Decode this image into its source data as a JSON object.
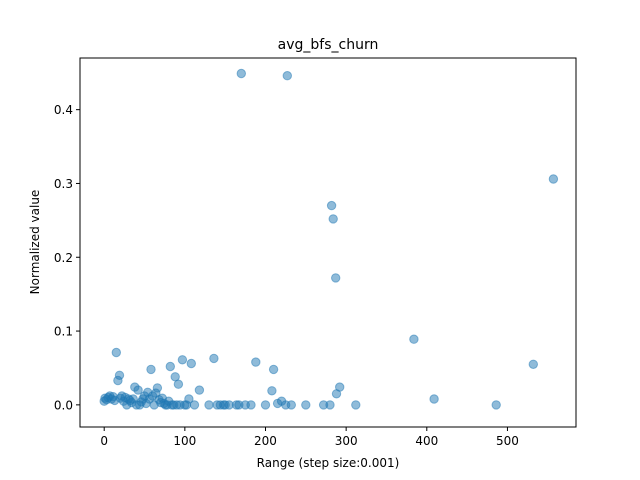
{
  "chart_data": {
    "type": "scatter",
    "title": "avg_bfs_churn",
    "xlabel": "Range (step size:0.001)",
    "ylabel": "Normalized value",
    "xlim": [
      -30,
      585
    ],
    "ylim": [
      -0.03,
      0.47
    ],
    "xticks": [
      0,
      100,
      200,
      300,
      400,
      500
    ],
    "yticks": [
      0.0,
      0.1,
      0.2,
      0.3,
      0.4
    ],
    "ytick_labels": [
      "0.0",
      "0.1",
      "0.2",
      "0.3",
      "0.4"
    ],
    "grid": false,
    "marker_color": "#1f77b4",
    "marker_alpha": 0.5,
    "points": [
      [
        0,
        0.005
      ],
      [
        1,
        0.009
      ],
      [
        3,
        0.007
      ],
      [
        5,
        0.01
      ],
      [
        7,
        0.012
      ],
      [
        9,
        0.008
      ],
      [
        11,
        0.011
      ],
      [
        13,
        0.006
      ],
      [
        15,
        0.071
      ],
      [
        17,
        0.033
      ],
      [
        19,
        0.04
      ],
      [
        20,
        0.009
      ],
      [
        22,
        0.012
      ],
      [
        24,
        0.005
      ],
      [
        26,
        0.01
      ],
      [
        28,
        0.0
      ],
      [
        30,
        0.008
      ],
      [
        32,
        0.006
      ],
      [
        34,
        0.003
      ],
      [
        36,
        0.008
      ],
      [
        38,
        0.024
      ],
      [
        40,
        0.0
      ],
      [
        42,
        0.02
      ],
      [
        44,
        0.0
      ],
      [
        46,
        0.004
      ],
      [
        48,
        0.008
      ],
      [
        50,
        0.012
      ],
      [
        52,
        0.002
      ],
      [
        54,
        0.017
      ],
      [
        56,
        0.008
      ],
      [
        58,
        0.048
      ],
      [
        60,
        0.012
      ],
      [
        62,
        0.0
      ],
      [
        64,
        0.016
      ],
      [
        66,
        0.023
      ],
      [
        68,
        0.007
      ],
      [
        70,
        0.003
      ],
      [
        72,
        0.009
      ],
      [
        74,
        0.002
      ],
      [
        76,
        0.0
      ],
      [
        78,
        0.0
      ],
      [
        80,
        0.005
      ],
      [
        82,
        0.052
      ],
      [
        84,
        0.0
      ],
      [
        86,
        0.0
      ],
      [
        88,
        0.038
      ],
      [
        90,
        0.0
      ],
      [
        92,
        0.028
      ],
      [
        94,
        0.0
      ],
      [
        97,
        0.061
      ],
      [
        100,
        0.0
      ],
      [
        102,
        0.0
      ],
      [
        105,
        0.008
      ],
      [
        108,
        0.056
      ],
      [
        112,
        0.0
      ],
      [
        118,
        0.02
      ],
      [
        130,
        0.0
      ],
      [
        136,
        0.063
      ],
      [
        140,
        0.0
      ],
      [
        144,
        0.0
      ],
      [
        148,
        0.0
      ],
      [
        150,
        0.0
      ],
      [
        155,
        0.0
      ],
      [
        164,
        0.0
      ],
      [
        167,
        0.0
      ],
      [
        170,
        0.449
      ],
      [
        175,
        0.0
      ],
      [
        182,
        0.0
      ],
      [
        188,
        0.058
      ],
      [
        200,
        0.0
      ],
      [
        208,
        0.019
      ],
      [
        210,
        0.048
      ],
      [
        215,
        0.002
      ],
      [
        220,
        0.005
      ],
      [
        225,
        0.0
      ],
      [
        227,
        0.446
      ],
      [
        232,
        0.0
      ],
      [
        250,
        0.0
      ],
      [
        272,
        0.0
      ],
      [
        280,
        0.0
      ],
      [
        282,
        0.27
      ],
      [
        284,
        0.252
      ],
      [
        287,
        0.172
      ],
      [
        288,
        0.015
      ],
      [
        292,
        0.024
      ],
      [
        312,
        0.0
      ],
      [
        384,
        0.089
      ],
      [
        409,
        0.008
      ],
      [
        486,
        0.0
      ],
      [
        532,
        0.055
      ],
      [
        557,
        0.306
      ]
    ]
  }
}
